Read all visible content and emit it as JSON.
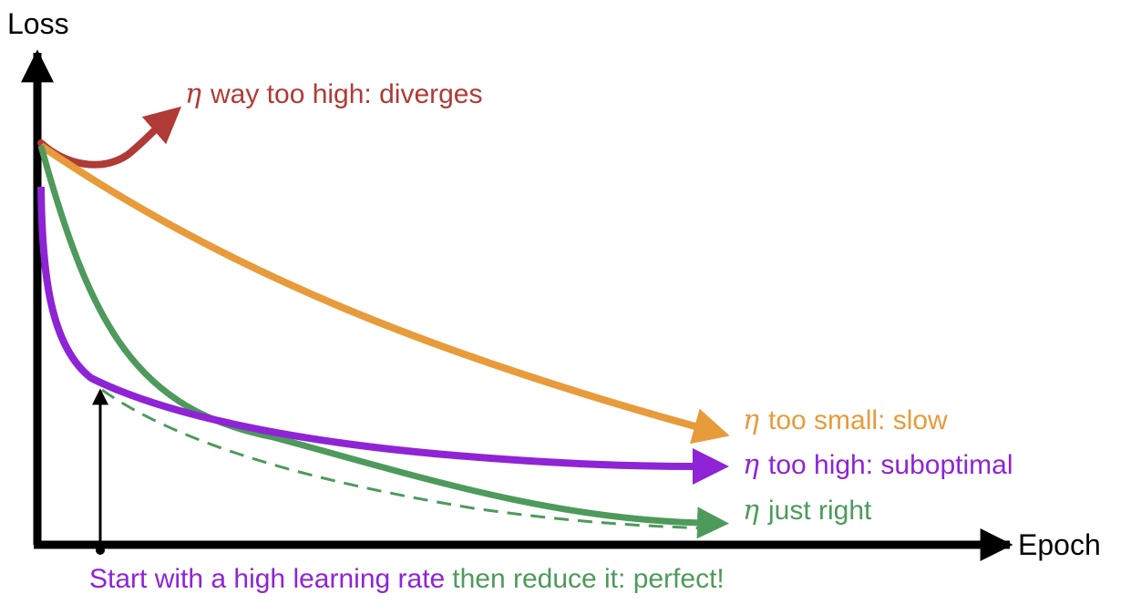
{
  "axes": {
    "y_label": "Loss",
    "x_label": "Epoch"
  },
  "curves": [
    {
      "id": "diverges",
      "symbol": "η",
      "label": "way too high: diverges",
      "color": "#b03a36"
    },
    {
      "id": "slow",
      "symbol": "η",
      "label": "too small: slow",
      "color": "#e89b3a"
    },
    {
      "id": "suboptimal",
      "symbol": "η",
      "label": "too high: suboptimal",
      "color": "#8e24d6"
    },
    {
      "id": "just-right",
      "symbol": "η",
      "label": "just right",
      "color": "#4e9a5c"
    }
  ],
  "caption": {
    "part1": "Start with a high learning rate",
    "part1_color": "#8e24d6",
    "part2": "then reduce it: perfect!",
    "part2_color": "#4e9a5c"
  },
  "colors": {
    "axis": "#000000",
    "schedule_dashed": "#4e9a5c"
  }
}
